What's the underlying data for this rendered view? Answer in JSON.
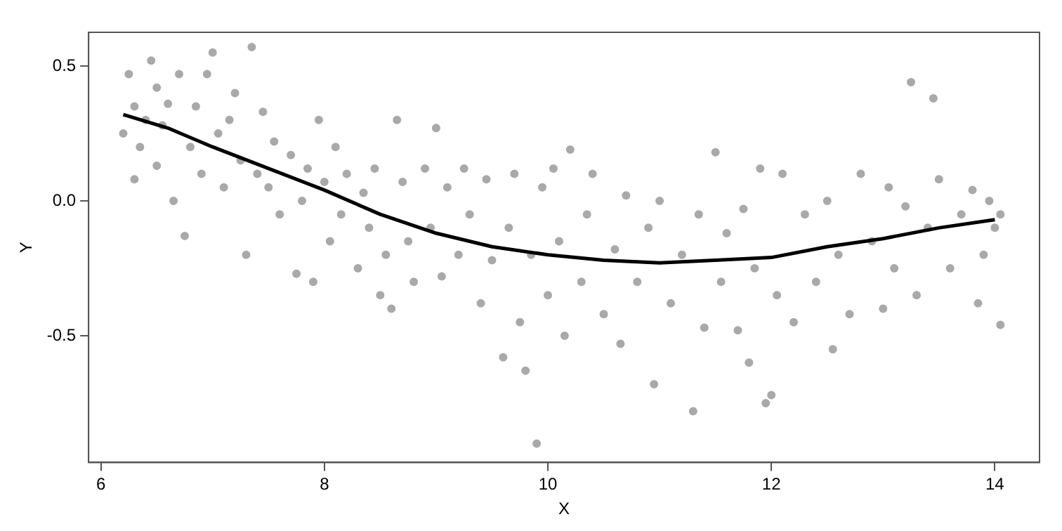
{
  "chart_data": {
    "type": "scatter",
    "xlabel": "X",
    "ylabel": "Y",
    "xlim": [
      5.89,
      14.4
    ],
    "xticks": [
      6,
      8,
      10,
      12,
      14
    ],
    "ylim": [
      -0.97,
      0.625
    ],
    "yticks": [
      -0.5,
      {
        "value": 0,
        "label": "0.0"
      },
      0.5
    ],
    "grid": false,
    "legend": false,
    "marker": "circle",
    "series": [
      {
        "color": "#a9a9a9",
        "x": [
          6.2,
          6.25,
          6.3,
          6.3,
          6.35,
          6.4,
          6.45,
          6.5,
          6.5,
          6.55,
          6.6,
          6.65,
          6.7,
          6.75,
          6.8,
          6.85,
          6.9,
          6.95,
          7.0,
          7.05,
          7.1,
          7.15,
          7.2,
          7.25,
          7.3,
          7.35,
          7.4,
          7.45,
          7.5,
          7.55,
          7.6,
          7.7,
          7.75,
          7.8,
          7.85,
          7.9,
          7.95,
          8.0,
          8.05,
          8.1,
          8.15,
          8.2,
          8.3,
          8.35,
          8.4,
          8.45,
          8.5,
          8.55,
          8.6,
          8.65,
          8.7,
          8.75,
          8.8,
          8.9,
          8.95,
          9.0,
          9.05,
          9.1,
          9.2,
          9.25,
          9.3,
          9.4,
          9.45,
          9.5,
          9.6,
          9.65,
          9.7,
          9.75,
          9.8,
          9.85,
          9.9,
          9.95,
          10.0,
          10.05,
          10.1,
          10.15,
          10.2,
          10.3,
          10.35,
          10.4,
          10.5,
          10.6,
          10.65,
          10.7,
          10.8,
          10.9,
          10.95,
          11.0,
          11.1,
          11.2,
          11.3,
          11.35,
          11.4,
          11.5,
          11.55,
          11.6,
          11.7,
          11.75,
          11.8,
          11.85,
          11.9,
          11.95,
          12.0,
          12.05,
          12.1,
          12.2,
          12.3,
          12.4,
          12.5,
          12.55,
          12.6,
          12.7,
          12.8,
          12.9,
          13.0,
          13.05,
          13.1,
          13.2,
          13.25,
          13.3,
          13.4,
          13.45,
          13.5,
          13.6,
          13.7,
          13.8,
          13.85,
          13.9,
          13.95,
          14.0,
          14.05,
          14.05
        ],
        "values": [
          0.25,
          0.47,
          0.35,
          0.08,
          0.2,
          0.3,
          0.52,
          0.42,
          0.13,
          0.28,
          0.36,
          0.0,
          0.47,
          -0.13,
          0.2,
          0.35,
          0.1,
          0.47,
          0.55,
          0.25,
          0.05,
          0.3,
          0.4,
          0.15,
          -0.2,
          0.57,
          0.1,
          0.33,
          0.05,
          0.22,
          -0.05,
          0.17,
          -0.27,
          0.0,
          0.12,
          -0.3,
          0.3,
          0.07,
          -0.15,
          0.2,
          -0.05,
          0.1,
          -0.25,
          0.03,
          -0.1,
          0.12,
          -0.35,
          -0.2,
          -0.4,
          0.3,
          0.07,
          -0.15,
          -0.3,
          0.12,
          -0.1,
          0.27,
          -0.28,
          0.05,
          -0.2,
          0.12,
          -0.05,
          -0.38,
          0.08,
          -0.22,
          -0.58,
          -0.1,
          0.1,
          -0.45,
          -0.63,
          -0.2,
          -0.9,
          0.05,
          -0.35,
          0.12,
          -0.15,
          -0.5,
          0.19,
          -0.3,
          -0.05,
          0.1,
          -0.42,
          -0.18,
          -0.53,
          0.02,
          -0.3,
          -0.1,
          -0.68,
          0.0,
          -0.38,
          -0.2,
          -0.78,
          -0.05,
          -0.47,
          0.18,
          -0.3,
          -0.12,
          -0.48,
          -0.03,
          -0.6,
          -0.25,
          0.12,
          -0.75,
          -0.72,
          -0.35,
          0.1,
          -0.45,
          -0.05,
          -0.3,
          0.0,
          -0.55,
          -0.2,
          -0.42,
          0.1,
          -0.15,
          -0.4,
          0.05,
          -0.25,
          -0.02,
          0.44,
          -0.35,
          -0.1,
          0.38,
          0.08,
          -0.25,
          -0.05,
          0.04,
          -0.38,
          -0.2,
          0.0,
          -0.1,
          -0.46,
          -0.05
        ]
      },
      {
        "type": "line",
        "color": "#000000",
        "marker": "none",
        "line_style": "solid",
        "x": [
          6.2,
          6.6,
          7.0,
          7.5,
          8.0,
          8.5,
          9.0,
          9.5,
          10.0,
          10.5,
          11.0,
          11.5,
          12.0,
          12.5,
          13.0,
          13.5,
          14.0
        ],
        "values": [
          0.32,
          0.27,
          0.2,
          0.12,
          0.04,
          -0.05,
          -0.12,
          -0.17,
          -0.2,
          -0.22,
          -0.23,
          -0.22,
          -0.21,
          -0.17,
          -0.14,
          -0.1,
          -0.07
        ]
      }
    ]
  }
}
